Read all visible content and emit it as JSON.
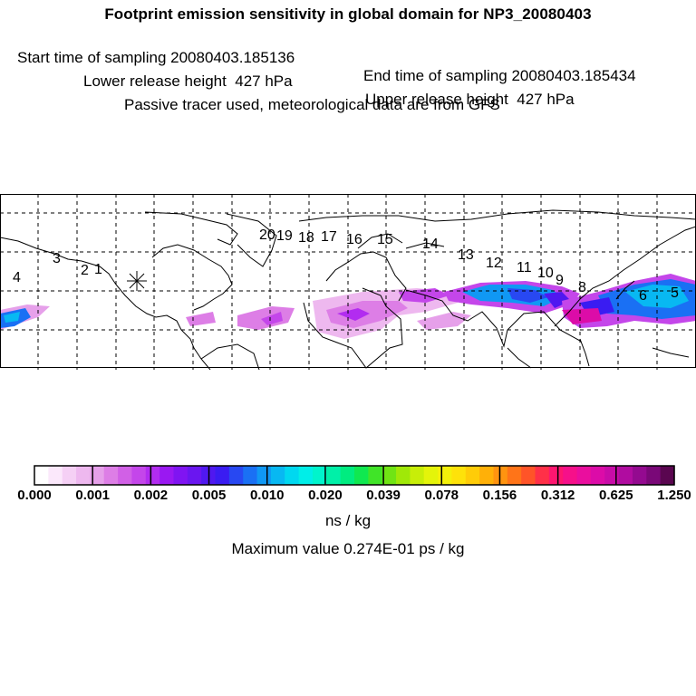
{
  "header": {
    "title": "Footprint emission sensitivity in global domain for NP3_20080403",
    "start_time": "Start time of sampling 20080403.185136",
    "end_time": "End time of sampling 20080403.185434",
    "lower_height": "Lower release height  427 hPa",
    "upper_height": "Upper release height  427 hPa",
    "tracer_note": "Passive tracer used, meteorological data are from GFS"
  },
  "map": {
    "trajectory_labels": [
      "20",
      "19",
      "18",
      "17",
      "16",
      "15",
      "14",
      "13",
      "12",
      "11",
      "10",
      "9",
      "8",
      "6",
      "5",
      "4",
      "3",
      "2",
      "1"
    ],
    "release_marker": "release-point-asterisk"
  },
  "colorbar": {
    "colors": [
      "#ffffff",
      "#fbe8fb",
      "#f5d0f5",
      "#eeb8ef",
      "#e6a0ea",
      "#dd7ee6",
      "#d160e6",
      "#c446ea",
      "#b22cf0",
      "#9a18f2",
      "#8014f2",
      "#6a16f0",
      "#5018f0",
      "#3a1cf2",
      "#2848f2",
      "#1a70f4",
      "#1098f4",
      "#08b8f2",
      "#00d8f0",
      "#00eee8",
      "#00f4cc",
      "#00f0a8",
      "#00ec80",
      "#10e850",
      "#40e428",
      "#70e414",
      "#a0e808",
      "#c8ee08",
      "#e4f40a",
      "#f4f00a",
      "#fee20a",
      "#ffcc08",
      "#ffb008",
      "#ff9410",
      "#ff7418",
      "#ff5428",
      "#ff3048",
      "#fe1670",
      "#f6108a",
      "#ea0e9e",
      "#dc0ca8",
      "#c80ca8",
      "#b00ca0",
      "#940a90",
      "#7a0878",
      "#5a0650"
    ],
    "tick_labels": [
      "0.000",
      "0.001",
      "0.002",
      "0.005",
      "0.010",
      "0.020",
      "0.039",
      "0.078",
      "0.156",
      "0.312",
      "0.625",
      "1.250"
    ],
    "units": "ns / kg",
    "maximum_value": "Maximum value  0.274E-01 ps / kg"
  }
}
